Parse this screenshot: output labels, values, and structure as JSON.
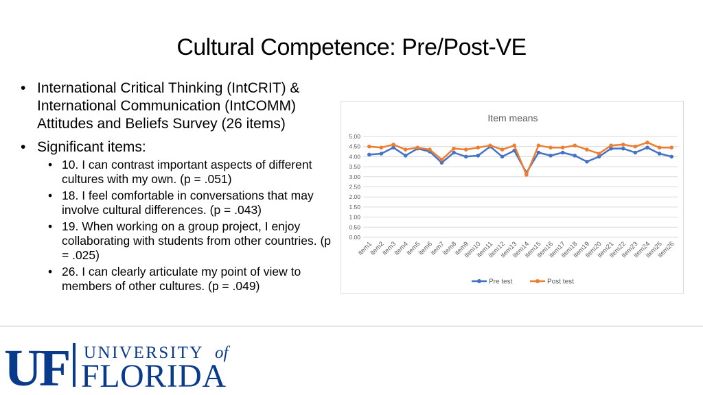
{
  "slide": {
    "title": "Cultural Competence: Pre/Post-VE",
    "bullets": [
      "International Critical Thinking (IntCRIT) & International Communication (IntCOMM) Attitudes and Beliefs Survey (26 items)",
      "Significant items:"
    ],
    "sub_bullets": [
      "10. I can contrast important aspects of different cultures with my own. (p = .051)",
      "18. I feel comfortable in conversations that may involve cultural differences. (p = .043)",
      "19. When working on a group project, I enjoy collaborating with students from other countries. (p = .025)",
      "26. I can clearly articulate my point of view to members of other cultures. (p = .049)"
    ]
  },
  "logo": {
    "mark": "UF",
    "line1": "UNIVERSITY",
    "of": "of",
    "line2": "FLORIDA",
    "color": "#0a3a8a"
  },
  "chart_data": {
    "type": "line",
    "title": "Item means",
    "categories": [
      "item1",
      "item2",
      "item3",
      "item4",
      "item5",
      "item6",
      "item7",
      "item8",
      "item9",
      "item10",
      "item11",
      "item12",
      "item13",
      "item14",
      "item15",
      "item16",
      "item17",
      "item18",
      "item19",
      "item20",
      "item21",
      "item22",
      "item23",
      "item24",
      "item25",
      "item26"
    ],
    "series": [
      {
        "name": "Pre test",
        "color": "#4472c4",
        "values": [
          4.1,
          4.15,
          4.45,
          4.05,
          4.4,
          4.25,
          3.7,
          4.2,
          4.0,
          4.05,
          4.5,
          4.0,
          4.3,
          3.2,
          4.2,
          4.05,
          4.2,
          4.05,
          3.75,
          4.0,
          4.4,
          4.4,
          4.2,
          4.45,
          4.15,
          4.0
        ]
      },
      {
        "name": "Post test",
        "color": "#ed7d31",
        "values": [
          4.5,
          4.45,
          4.6,
          4.35,
          4.45,
          4.35,
          3.85,
          4.4,
          4.35,
          4.45,
          4.55,
          4.35,
          4.55,
          3.1,
          4.55,
          4.45,
          4.45,
          4.55,
          4.35,
          4.15,
          4.55,
          4.6,
          4.5,
          4.7,
          4.45,
          4.45
        ]
      }
    ],
    "ylim": [
      0,
      5
    ],
    "yticks": [
      "0.00",
      "0.50",
      "1.00",
      "1.50",
      "2.00",
      "2.50",
      "3.00",
      "3.50",
      "4.00",
      "4.50",
      "5.00"
    ],
    "grid": true,
    "legend": "bottom"
  }
}
